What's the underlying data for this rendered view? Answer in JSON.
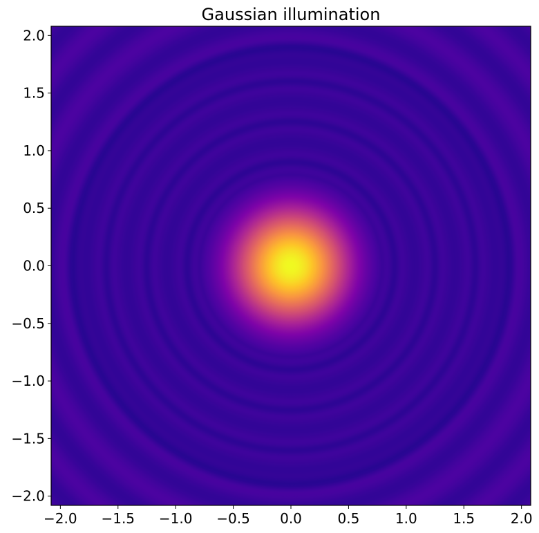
{
  "chart_data": {
    "type": "heatmap",
    "title": "Gaussian illumination",
    "xlabel": "",
    "ylabel": "",
    "xlim": [
      -2.08,
      2.08
    ],
    "ylim": [
      -2.08,
      2.08
    ],
    "xticks": [
      -2.0,
      -1.5,
      -1.0,
      -0.5,
      0.0,
      0.5,
      1.0,
      1.5,
      2.0
    ],
    "yticks": [
      -2.0,
      -1.5,
      -1.0,
      -0.5,
      0.0,
      0.5,
      1.0,
      1.5,
      2.0
    ],
    "xtick_labels": [
      "−2.0",
      "−1.5",
      "−1.0",
      "−0.5",
      "0.0",
      "0.5",
      "1.0",
      "1.5",
      "2.0"
    ],
    "ytick_labels": [
      "−2.0",
      "−1.5",
      "−1.0",
      "−0.5",
      "0.0",
      "0.5",
      "1.0",
      "1.5",
      "2.0"
    ],
    "colormap": "plasma",
    "grid": false,
    "pattern": {
      "center": [
        0.0,
        0.0
      ],
      "peak_intensity": 1.0,
      "dark_ring_radii": [
        0.9,
        1.25,
        1.6,
        1.9
      ],
      "background_intensity": 0.1
    }
  }
}
